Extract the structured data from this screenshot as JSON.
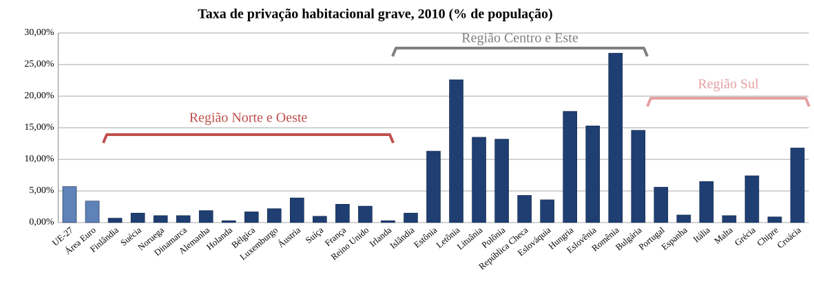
{
  "chart_data": {
    "type": "bar",
    "title": "Taxa de privação habitacional grave, 2010 (% de população)",
    "categories": [
      "UE-27",
      "Área Euro",
      "Finlândia",
      "Suécia",
      "Noruega",
      "Dinamarca",
      "Alemanha",
      "Holanda",
      "Bélgica",
      "Luxemburgo",
      "Áustria",
      "Suíça",
      "França",
      "Reino Unido",
      "Irlanda",
      "Islândia",
      "Estônia",
      "Letônia",
      "Lituânia",
      "Polônia",
      "República Checa",
      "Eslováquia",
      "Hungria",
      "Eslovênia",
      "Romênia",
      "Bulgária",
      "Portugal",
      "Espanha",
      "Itália",
      "Malta",
      "Grécia",
      "Chipre",
      "Croácia"
    ],
    "values": [
      5.7,
      3.4,
      0.7,
      1.5,
      1.1,
      1.1,
      1.9,
      0.3,
      1.7,
      2.2,
      3.9,
      1.0,
      2.9,
      2.6,
      0.3,
      1.5,
      11.3,
      22.6,
      13.5,
      13.2,
      4.3,
      3.6,
      17.6,
      15.3,
      26.8,
      14.6,
      5.6,
      1.2,
      6.5,
      1.1,
      7.4,
      0.9,
      11.8
    ],
    "colors": [
      "#5f82b8",
      "#5f82b8",
      "#1f3f73",
      "#1f3f73",
      "#1f3f73",
      "#1f3f73",
      "#1f3f73",
      "#1f3f73",
      "#1f3f73",
      "#1f3f73",
      "#1f3f73",
      "#1f3f73",
      "#1f3f73",
      "#1f3f73",
      "#1f3f73",
      "#1f3f73",
      "#1f3f73",
      "#1f3f73",
      "#1f3f73",
      "#1f3f73",
      "#1f3f73",
      "#1f3f73",
      "#1f3f73",
      "#1f3f73",
      "#1f3f73",
      "#1f3f73",
      "#1f3f73",
      "#1f3f73",
      "#1f3f73",
      "#1f3f73",
      "#1f3f73",
      "#1f3f73",
      "#1f3f73"
    ],
    "ylim": [
      0,
      30
    ],
    "yticks": [
      {
        "value": 0,
        "label": "0,00%"
      },
      {
        "value": 5,
        "label": "5,00%"
      },
      {
        "value": 10,
        "label": "10,00%"
      },
      {
        "value": 15,
        "label": "15,00%"
      },
      {
        "value": 20,
        "label": "20,00%"
      },
      {
        "value": 25,
        "label": "25,00%"
      },
      {
        "value": 30,
        "label": "30,00%"
      }
    ],
    "grid": true,
    "annotations": [
      {
        "text": "Região Norte e Oeste",
        "color": "#c0504d"
      },
      {
        "text": "Região Centro e Este",
        "color": "#7f7f7f"
      },
      {
        "text": "Região Sul",
        "color": "#e6a0a0"
      }
    ]
  }
}
